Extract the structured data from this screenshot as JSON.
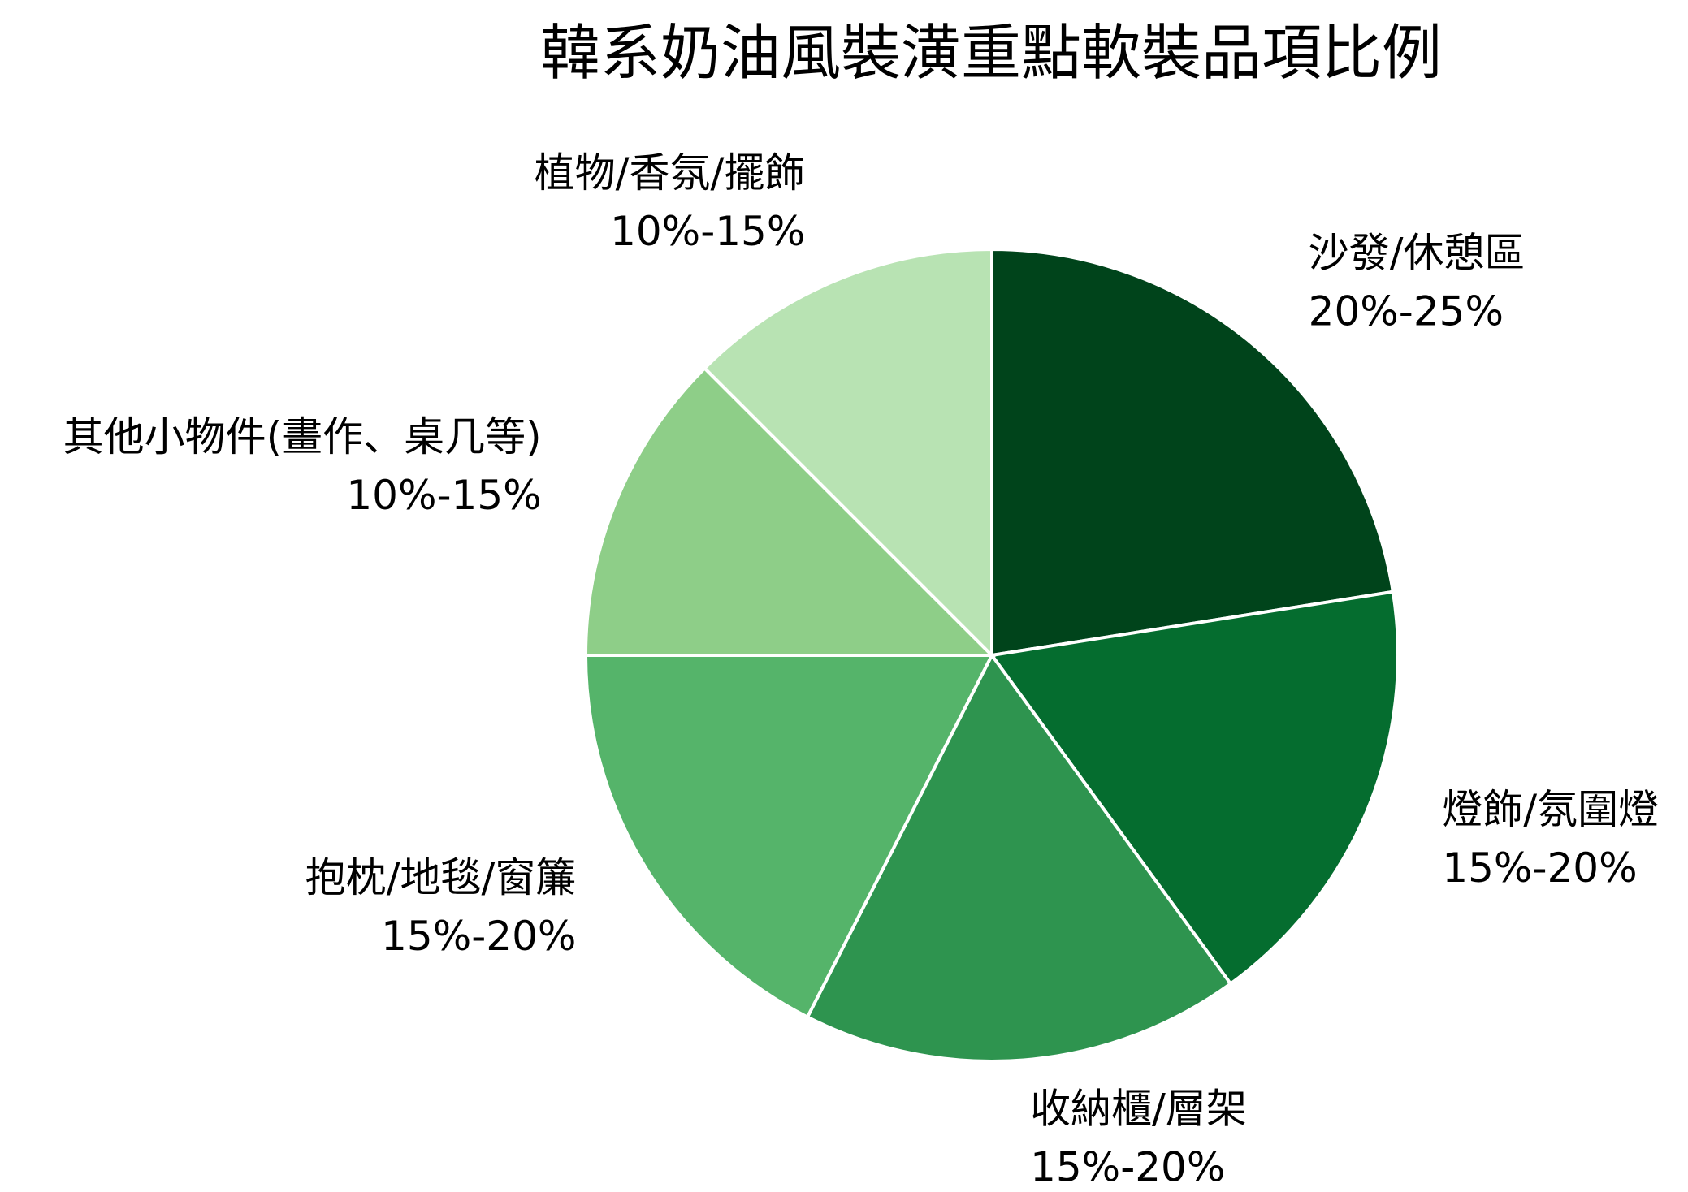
{
  "chart_data": {
    "type": "pie",
    "title": "韓系奶油風裝潢重點軟裝品項比例",
    "categories": [
      "沙發/休憩區",
      "燈飾/氛圍燈",
      "收納櫃/層架",
      "抱枕/地毯/窗簾",
      "其他小物件(畫作、桌几等)",
      "植物/香氛/擺飾"
    ],
    "values": [
      22.5,
      17.5,
      17.5,
      17.5,
      12.5,
      12.5
    ],
    "value_labels": [
      "20%-25%",
      "15%-20%",
      "15%-20%",
      "15%-20%",
      "10%-15%",
      "10%-15%"
    ],
    "colors": [
      "#00441b",
      "#056d2f",
      "#2e944f",
      "#55b46a",
      "#8ece88",
      "#b8e3b3"
    ]
  }
}
